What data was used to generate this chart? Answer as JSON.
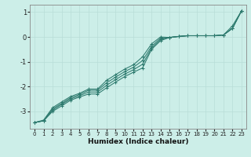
{
  "xlabel": "Humidex (Indice chaleur)",
  "bg_color": "#cceee8",
  "line_color": "#2d7a6e",
  "grid_color": "#b8ddd8",
  "x_values": [
    0,
    1,
    2,
    3,
    4,
    5,
    6,
    7,
    8,
    9,
    10,
    11,
    12,
    13,
    14,
    15,
    16,
    17,
    18,
    19,
    20,
    21,
    22,
    23
  ],
  "series": [
    [
      -3.45,
      -3.38,
      -3.0,
      -2.78,
      -2.55,
      -2.42,
      -2.3,
      -2.3,
      -2.05,
      -1.82,
      -1.6,
      -1.42,
      -1.25,
      -0.5,
      -0.15,
      -0.02,
      0.02,
      0.05,
      0.05,
      0.05,
      0.05,
      0.08,
      0.35,
      1.05
    ],
    [
      -3.45,
      -3.38,
      -2.95,
      -2.72,
      -2.5,
      -2.37,
      -2.22,
      -2.22,
      -1.95,
      -1.72,
      -1.5,
      -1.32,
      -1.1,
      -0.45,
      -0.1,
      -0.02,
      0.02,
      0.05,
      0.05,
      0.05,
      0.05,
      0.08,
      0.35,
      1.05
    ],
    [
      -3.45,
      -3.38,
      -2.9,
      -2.68,
      -2.45,
      -2.32,
      -2.15,
      -2.15,
      -1.85,
      -1.62,
      -1.4,
      -1.22,
      -0.95,
      -0.38,
      -0.05,
      -0.02,
      0.02,
      0.05,
      0.05,
      0.05,
      0.05,
      0.08,
      0.35,
      1.05
    ],
    [
      -3.45,
      -3.35,
      -2.85,
      -2.62,
      -2.4,
      -2.27,
      -2.1,
      -2.1,
      -1.75,
      -1.52,
      -1.3,
      -1.12,
      -0.8,
      -0.28,
      0.0,
      -0.02,
      0.02,
      0.05,
      0.05,
      0.05,
      0.05,
      0.08,
      0.45,
      1.05
    ]
  ],
  "ylim": [
    -3.7,
    1.3
  ],
  "xlim": [
    -0.5,
    23.5
  ],
  "yticks": [
    1,
    0,
    -1,
    -2,
    -3
  ],
  "xticks": [
    0,
    1,
    2,
    3,
    4,
    5,
    6,
    7,
    8,
    9,
    10,
    11,
    12,
    13,
    14,
    15,
    16,
    17,
    18,
    19,
    20,
    21,
    22,
    23
  ]
}
